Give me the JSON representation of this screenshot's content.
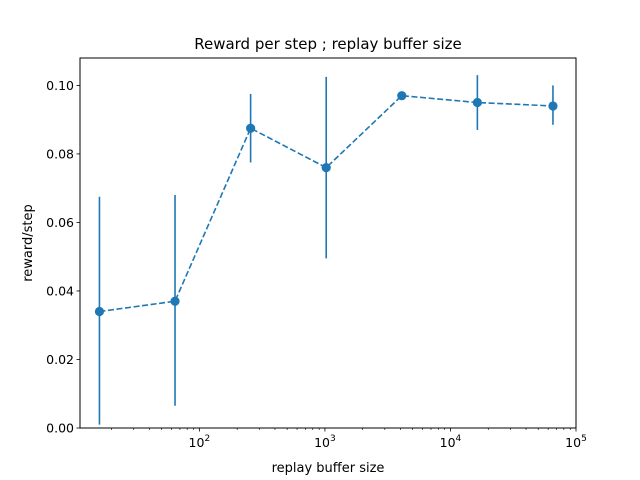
{
  "chart_data": {
    "type": "line",
    "title": "Reward per step ; replay buffer size",
    "xlabel": "replay buffer size",
    "ylabel": "reward/step",
    "xscale": "log",
    "xlim": [
      11.2,
      100000
    ],
    "ylim": [
      0.0,
      0.108
    ],
    "x_major_ticks": [
      {
        "value": 100,
        "base": "10",
        "exp": "2"
      },
      {
        "value": 1000,
        "base": "10",
        "exp": "3"
      },
      {
        "value": 10000,
        "base": "10",
        "exp": "4"
      },
      {
        "value": 100000,
        "base": "10",
        "exp": "5"
      }
    ],
    "y_ticks": [
      {
        "value": 0.0,
        "label": "0.00"
      },
      {
        "value": 0.02,
        "label": "0.02"
      },
      {
        "value": 0.04,
        "label": "0.04"
      },
      {
        "value": 0.06,
        "label": "0.06"
      },
      {
        "value": 0.08,
        "label": "0.08"
      },
      {
        "value": 0.1,
        "label": "0.10"
      }
    ],
    "grid": false,
    "legend": "none",
    "series": [
      {
        "color": "#1f77b4",
        "linestyle": "dashed",
        "marker": "circle",
        "x": [
          16,
          64,
          256,
          1024,
          4096,
          16384,
          65536
        ],
        "y": [
          0.034,
          0.037,
          0.0875,
          0.076,
          0.097,
          0.095,
          0.094
        ],
        "err_low": [
          0.001,
          0.0065,
          0.0775,
          0.0495,
          0.097,
          0.087,
          0.0885
        ],
        "err_high": [
          0.0675,
          0.068,
          0.0975,
          0.1025,
          0.097,
          0.103,
          0.1
        ]
      }
    ]
  }
}
